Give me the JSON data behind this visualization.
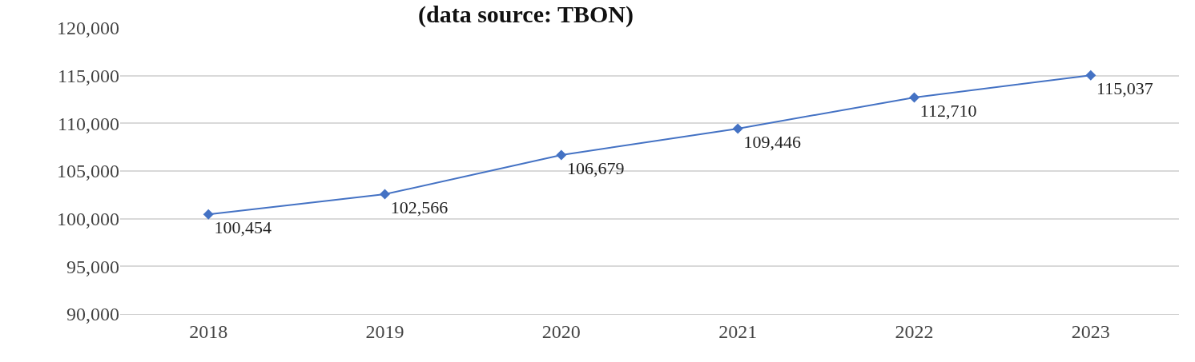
{
  "chart_data": {
    "type": "line",
    "title": "(data source: TBON)",
    "categories": [
      "2018",
      "2019",
      "2020",
      "2021",
      "2022",
      "2023"
    ],
    "series": [
      {
        "color": "#4472c4",
        "values": [
          100454,
          102566,
          106679,
          109446,
          112710,
          115037
        ],
        "value_labels": [
          "100,454",
          "102,566",
          "106,679",
          "109,446",
          "112,710",
          "115,037"
        ]
      }
    ],
    "ylim": [
      90000,
      120000
    ],
    "yticks": [
      {
        "value": 90000,
        "label": "90,000"
      },
      {
        "value": 95000,
        "label": "95,000"
      },
      {
        "value": 100000,
        "label": "100,000"
      },
      {
        "value": 105000,
        "label": "105,000"
      },
      {
        "value": 110000,
        "label": "110,000"
      },
      {
        "value": 115000,
        "label": "115,000"
      },
      {
        "value": 120000,
        "label": "120,000"
      }
    ],
    "grid": "y",
    "marker": "diamond",
    "line_style": "solid"
  }
}
